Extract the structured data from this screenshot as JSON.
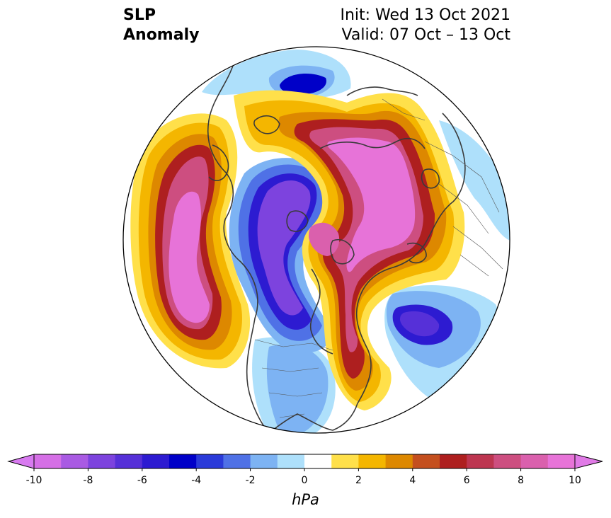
{
  "title": {
    "line1": "SLP",
    "line2": "Anomaly"
  },
  "run_info": {
    "init": "Init: Wed 13 Oct 2021",
    "valid": "Valid: 07 Oct – 13 Oct"
  },
  "colorbar": {
    "units": "hPa",
    "tick_labels": [
      "-10",
      "-8",
      "-6",
      "-4",
      "-2",
      "0",
      "2",
      "4",
      "6",
      "8",
      "10"
    ],
    "levels": [
      -10,
      -9,
      -8,
      -7,
      -6,
      -5,
      -4,
      -3,
      -2,
      -1,
      1,
      2,
      3,
      4,
      5,
      6,
      7,
      8,
      9,
      10
    ],
    "colors": [
      "#d56fe6",
      "#a95ae3",
      "#7d43de",
      "#5630d8",
      "#2d1bd1",
      "#0000c8",
      "#2a3ad9",
      "#4f71e6",
      "#7db3f3",
      "#aee0fb",
      "#ffffff",
      "#ffe04a",
      "#f4b600",
      "#dd8800",
      "#c44f1e",
      "#ae1f1f",
      "#bd3550",
      "#cd4e80",
      "#da60ad",
      "#e773d8"
    ],
    "extend_low_color": "#d87af0",
    "extend_high_color": "#e07ae6"
  },
  "map": {
    "projection": "north-polar-stereographic",
    "field": "SLP anomaly"
  }
}
